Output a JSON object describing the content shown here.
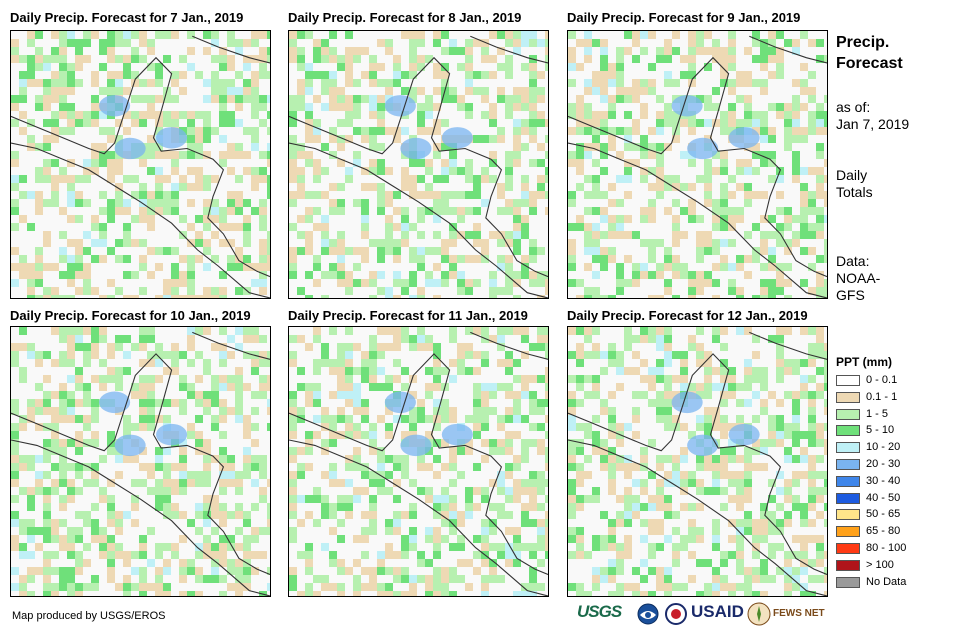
{
  "panels": [
    {
      "title": "Daily Precip. Forecast for 7 Jan., 2019",
      "day": 7
    },
    {
      "title": "Daily Precip. Forecast for 8 Jan., 2019",
      "day": 8
    },
    {
      "title": "Daily Precip. Forecast for 9 Jan., 2019",
      "day": 9
    },
    {
      "title": "Daily Precip. Forecast for 10 Jan., 2019",
      "day": 10
    },
    {
      "title": "Daily Precip. Forecast for 11 Jan., 2019",
      "day": 11
    },
    {
      "title": "Daily Precip. Forecast for 12 Jan., 2019",
      "day": 12
    }
  ],
  "sidebar": {
    "title_line1": "Precip.",
    "title_line2": "Forecast",
    "asof_line1": "as of:",
    "asof_line2": "Jan 7, 2019",
    "totals_line1": "Daily",
    "totals_line2": "Totals",
    "data_line1": "Data:",
    "data_line2": "NOAA-",
    "data_line3": "GFS"
  },
  "legend": {
    "title": "PPT (mm)",
    "items": [
      {
        "label": "0 - 0.1",
        "color": "#ffffff"
      },
      {
        "label": "0.1 - 1",
        "color": "#eed9b4"
      },
      {
        "label": "1 - 5",
        "color": "#b7f0b0"
      },
      {
        "label": "5 - 10",
        "color": "#6fe07a"
      },
      {
        "label": "10 - 20",
        "color": "#bff0f6"
      },
      {
        "label": "20 - 30",
        "color": "#7ab4f0"
      },
      {
        "label": "30 - 40",
        "color": "#3f86ea"
      },
      {
        "label": "40 - 50",
        "color": "#1d5be0"
      },
      {
        "label": "50 - 65",
        "color": "#ffe58a"
      },
      {
        "label": "65 - 80",
        "color": "#ffa11a"
      },
      {
        "label": "80 - 100",
        "color": "#ff3a14"
      },
      {
        "label": "> 100",
        "color": "#b0141a"
      },
      {
        "label": "No Data",
        "color": "#9a9a9a"
      }
    ]
  },
  "credit": "Map produced by USGS/EROS",
  "logos": {
    "usgs": "USGS",
    "usaid": "USAID",
    "fews": "FEWS NET"
  }
}
